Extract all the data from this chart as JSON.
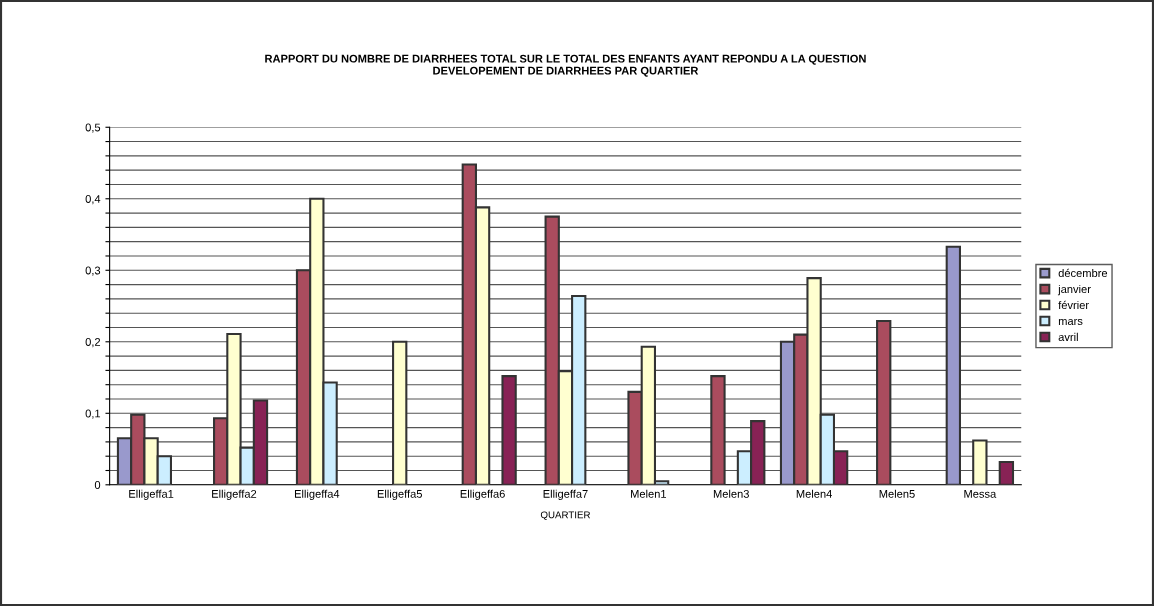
{
  "chart_data": {
    "type": "bar",
    "title": "RAPPORT DU NOMBRE DE DIARRHEES TOTAL SUR LE TOTAL DES ENFANTS AYANT REPONDU A LA QUESTION\nDEVELOPEMENT DE DIARRHEES PAR QUARTIER",
    "xlabel": "QUARTIER",
    "categories": [
      "Elligeffa1",
      "Elligeffa2",
      "Elligeffa4",
      "Elligeffa5",
      "Elligeffa6",
      "Elligeffa7",
      "Melen1",
      "Melen3",
      "Melen4",
      "Melen5",
      "Messa"
    ],
    "series": [
      {
        "name": "décembre",
        "color": "#9999cc",
        "values": [
          0.065,
          null,
          null,
          null,
          null,
          null,
          null,
          null,
          0.2,
          null,
          0.333
        ]
      },
      {
        "name": "janvier",
        "color": "#aa4c5e",
        "values": [
          0.098,
          0.093,
          0.3,
          null,
          0.448,
          0.375,
          0.13,
          0.152,
          0.21,
          0.229,
          null
        ]
      },
      {
        "name": "février",
        "color": "#ffffd0",
        "values": [
          0.065,
          0.211,
          0.4,
          0.2,
          0.388,
          0.159,
          0.193,
          null,
          0.289,
          null,
          0.062
        ]
      },
      {
        "name": "mars",
        "color": "#cceeff",
        "values": [
          0.04,
          0.052,
          0.143,
          null,
          null,
          0.264,
          0.005,
          0.047,
          0.098,
          null,
          null
        ]
      },
      {
        "name": "avril",
        "color": "#882255",
        "values": [
          null,
          0.118,
          null,
          null,
          0.152,
          null,
          null,
          0.089,
          0.047,
          null,
          0.032
        ]
      }
    ],
    "ylim": [
      0,
      0.5
    ],
    "yticks": [
      {
        "value": 0,
        "label": "0"
      },
      {
        "value": 0.02,
        "label": null
      },
      {
        "value": 0.04,
        "label": null
      },
      {
        "value": 0.06,
        "label": null
      },
      {
        "value": 0.08,
        "label": null
      },
      {
        "value": 0.1,
        "label": "0,1"
      },
      {
        "value": 0.12,
        "label": null
      },
      {
        "value": 0.14,
        "label": null
      },
      {
        "value": 0.16,
        "label": null
      },
      {
        "value": 0.18,
        "label": null
      },
      {
        "value": 0.2,
        "label": "0,2"
      },
      {
        "value": 0.22,
        "label": null
      },
      {
        "value": 0.24,
        "label": null
      },
      {
        "value": 0.26,
        "label": null
      },
      {
        "value": 0.28,
        "label": null
      },
      {
        "value": 0.3,
        "label": "0,3"
      },
      {
        "value": 0.32,
        "label": null
      },
      {
        "value": 0.34,
        "label": null
      },
      {
        "value": 0.36,
        "label": null
      },
      {
        "value": 0.38,
        "label": null
      },
      {
        "value": 0.4,
        "label": "0,4"
      },
      {
        "value": 0.42,
        "label": null
      },
      {
        "value": 0.44,
        "label": null
      },
      {
        "value": 0.46,
        "label": null
      },
      {
        "value": 0.48,
        "label": null
      },
      {
        "value": 0.5,
        "label": "0,5"
      }
    ],
    "grid": "y",
    "legend": "right"
  }
}
